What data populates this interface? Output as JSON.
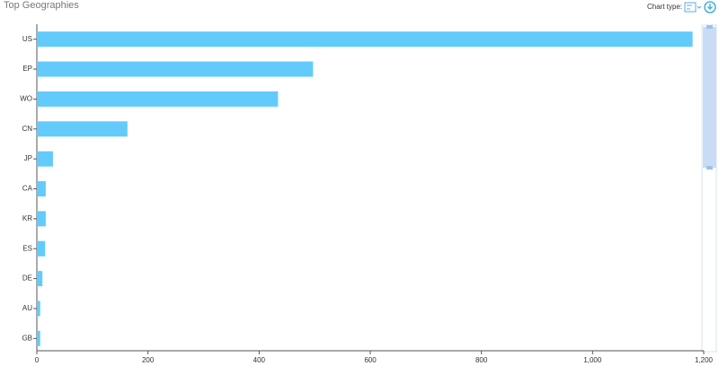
{
  "chart_data": {
    "type": "bar",
    "orientation": "horizontal",
    "title": "Top Geographies",
    "categories": [
      "US",
      "EP",
      "WO",
      "CN",
      "JP",
      "CA",
      "KR",
      "ES",
      "DE",
      "AU",
      "GB"
    ],
    "values": [
      1180,
      497,
      434,
      163,
      29,
      16,
      16,
      15,
      10,
      6,
      6
    ],
    "color": "#62cbfb",
    "xlim": [
      0,
      1200
    ],
    "xticks": [
      0,
      200,
      400,
      600,
      800,
      {
        "value": 1000,
        "label": "1,000"
      },
      {
        "value": 1200,
        "label": "1,200"
      }
    ]
  },
  "toolbar": {
    "label": "Chart type:"
  }
}
